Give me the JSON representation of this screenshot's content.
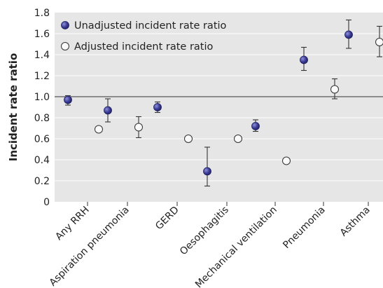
{
  "chart_data": {
    "type": "scatter",
    "ylabel": "Incident rate ratio",
    "xlabel": "",
    "ylim": [
      0,
      1.8
    ],
    "yticks": [
      "0",
      "0.2",
      "0.4",
      "0.6",
      "0.8",
      "1.0",
      "1.2",
      "1.4",
      "1.6",
      "1.8"
    ],
    "reference_line": 1.0,
    "grid": true,
    "legend_position": "top-left",
    "categories": [
      "Any RRH",
      "Aspiration pneumonia",
      "GERD",
      "Oesophagitis",
      "Mechanical ventilation",
      "Pneumonia",
      "Asthma"
    ],
    "series": [
      {
        "name": "Unadjusted incident rate ratio",
        "color": "#2e2f7f",
        "values": [
          0.97,
          0.87,
          0.9,
          0.29,
          0.72,
          1.35,
          1.59
        ],
        "ci_low": [
          0.92,
          0.76,
          0.85,
          0.15,
          0.67,
          1.25,
          1.46
        ],
        "ci_high": [
          1.01,
          0.98,
          0.95,
          0.52,
          0.78,
          1.47,
          1.73
        ]
      },
      {
        "name": "Adjusted incident rate ratio",
        "color": "#ffffff",
        "values": [
          0.69,
          0.71,
          0.6,
          0.6,
          0.39,
          1.07,
          1.52
        ],
        "ci_low": [
          0.69,
          0.61,
          0.6,
          0.6,
          0.39,
          0.98,
          1.38
        ],
        "ci_high": [
          0.69,
          0.81,
          0.6,
          0.6,
          0.39,
          1.17,
          1.67
        ]
      }
    ]
  }
}
